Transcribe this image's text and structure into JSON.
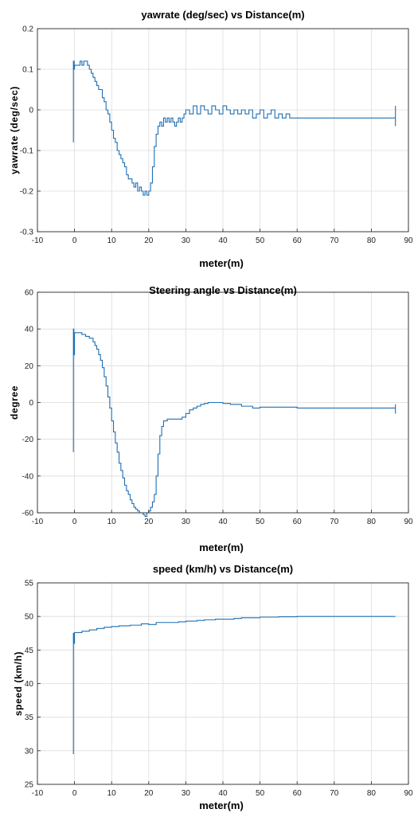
{
  "chart_data": [
    {
      "type": "line",
      "title": "yawrate (deg/sec) vs Distance(m)",
      "xlabel": "meter(m)",
      "ylabel": "yawrate (deg/sec)",
      "xlim": [
        -10,
        90
      ],
      "ylim": [
        -0.3,
        0.2
      ],
      "xticks": [
        -10,
        0,
        10,
        20,
        30,
        40,
        50,
        60,
        70,
        80,
        90
      ],
      "yticks": [
        -0.3,
        -0.2,
        -0.1,
        0,
        0.1,
        0.2
      ],
      "grid": true,
      "color": "#1f6fb4",
      "series": [
        {
          "x": [
            -0.3,
            -0.3,
            -0.1,
            0,
            0.5,
            1,
            1.5,
            2,
            2.5,
            3,
            3.5,
            4,
            4.5,
            5,
            5.5,
            6,
            6.5,
            7,
            7.5,
            8,
            8.5,
            9,
            9.5,
            10,
            10.5,
            11,
            11.5,
            12,
            12.5,
            13,
            13.5,
            14,
            14.5,
            15,
            15.5,
            16,
            16.5,
            17,
            17.5,
            18,
            18.5,
            19,
            19.5,
            20,
            20.5,
            21,
            21.5,
            22,
            22.5,
            23,
            23.5,
            24,
            24.5,
            25,
            25.5,
            26,
            26.5,
            27,
            27.5,
            28,
            28.5,
            29,
            29.5,
            30,
            31,
            32,
            33,
            34,
            35,
            36,
            37,
            38,
            39,
            40,
            41,
            42,
            43,
            44,
            45,
            46,
            47,
            48,
            49,
            50,
            51,
            52,
            53,
            54,
            55,
            56,
            57,
            58,
            60,
            70,
            80,
            86.5,
            86.5,
            86.5
          ],
          "y": [
            -0.08,
            0.12,
            0.1,
            0.11,
            0.11,
            0.11,
            0.12,
            0.11,
            0.12,
            0.12,
            0.11,
            0.1,
            0.09,
            0.08,
            0.07,
            0.06,
            0.05,
            0.05,
            0.03,
            0.02,
            0.0,
            -0.01,
            -0.03,
            -0.05,
            -0.07,
            -0.08,
            -0.1,
            -0.11,
            -0.12,
            -0.13,
            -0.14,
            -0.16,
            -0.17,
            -0.17,
            -0.18,
            -0.19,
            -0.18,
            -0.2,
            -0.19,
            -0.2,
            -0.21,
            -0.2,
            -0.21,
            -0.2,
            -0.18,
            -0.14,
            -0.09,
            -0.06,
            -0.04,
            -0.03,
            -0.04,
            -0.02,
            -0.03,
            -0.02,
            -0.03,
            -0.02,
            -0.03,
            -0.04,
            -0.03,
            -0.02,
            -0.03,
            -0.02,
            -0.01,
            0.0,
            -0.01,
            0.01,
            -0.01,
            0.01,
            0.0,
            -0.01,
            0.01,
            0.0,
            -0.01,
            0.01,
            0.0,
            -0.01,
            0.0,
            -0.01,
            0.0,
            -0.01,
            0.0,
            -0.02,
            -0.01,
            0.0,
            -0.02,
            -0.01,
            0.0,
            -0.02,
            -0.01,
            -0.02,
            -0.01,
            -0.02,
            -0.02,
            -0.02,
            -0.02,
            -0.02,
            0.01,
            -0.04
          ]
        }
      ]
    },
    {
      "type": "line",
      "title": "Steering angle vs Distance(m)",
      "xlabel": "meter(m)",
      "ylabel": "degree",
      "xlim": [
        -10,
        90
      ],
      "ylim": [
        -60,
        60
      ],
      "xticks": [
        -10,
        0,
        10,
        20,
        30,
        40,
        50,
        60,
        70,
        80,
        90
      ],
      "yticks": [
        -60,
        -40,
        -20,
        0,
        20,
        40,
        60
      ],
      "grid": true,
      "color": "#1f6fb4",
      "series": [
        {
          "x": [
            -0.3,
            -0.3,
            -0.2,
            0,
            1,
            2,
            3,
            4,
            5,
            5.5,
            6,
            6.5,
            7,
            7.5,
            8,
            8.5,
            9,
            9.5,
            10,
            10.5,
            11,
            11.5,
            12,
            12.5,
            13,
            13.5,
            14,
            14.5,
            15,
            15.5,
            16,
            16.5,
            17,
            17.5,
            18,
            18.5,
            19,
            19.5,
            20,
            20.5,
            21,
            21.5,
            22,
            22.5,
            23,
            23.5,
            24,
            25,
            26,
            27,
            28,
            29,
            30,
            31,
            32,
            33,
            34,
            35,
            36,
            37,
            38,
            40,
            42,
            45,
            48,
            50,
            55,
            60,
            70,
            80,
            86.5,
            86.5,
            86.5
          ],
          "y": [
            -27,
            40,
            26,
            38,
            38,
            37,
            36,
            35,
            33,
            31,
            29,
            26,
            23,
            19,
            14,
            9,
            3,
            -3,
            -10,
            -16,
            -22,
            -27,
            -33,
            -37,
            -41,
            -45,
            -48,
            -50,
            -53,
            -55,
            -57,
            -58,
            -59,
            -60,
            -60,
            -61,
            -62,
            -60,
            -59,
            -57,
            -54,
            -50,
            -40,
            -28,
            -18,
            -13,
            -10,
            -9,
            -9,
            -9,
            -9,
            -8,
            -6,
            -4,
            -3,
            -2,
            -1,
            -0.5,
            0,
            0,
            0,
            -0.5,
            -1,
            -2,
            -3,
            -2.5,
            -2.5,
            -3,
            -3,
            -3,
            -1,
            -6,
            -3
          ]
        }
      ]
    },
    {
      "type": "line",
      "title": "speed (km/h) vs Distance(m)",
      "xlabel": "meter(m)",
      "ylabel": "speed (km/h)",
      "xlim": [
        -10,
        90
      ],
      "ylim": [
        25,
        55
      ],
      "xticks": [
        -10,
        0,
        10,
        20,
        30,
        40,
        50,
        60,
        70,
        80,
        90
      ],
      "yticks": [
        25,
        30,
        35,
        40,
        45,
        50,
        55
      ],
      "grid": true,
      "color": "#1f6fb4",
      "series": [
        {
          "x": [
            -0.3,
            -0.3,
            -0.2,
            0,
            2,
            4,
            6,
            8,
            10,
            12,
            15,
            18,
            20,
            22,
            25,
            28,
            30,
            33,
            35,
            38,
            40,
            43,
            45,
            48,
            50,
            55,
            60,
            70,
            80,
            86.5
          ],
          "y": [
            29.5,
            47.5,
            46,
            47.6,
            47.8,
            48,
            48.2,
            48.4,
            48.5,
            48.6,
            48.7,
            48.9,
            48.8,
            49.1,
            49.1,
            49.2,
            49.3,
            49.4,
            49.5,
            49.6,
            49.6,
            49.7,
            49.8,
            49.8,
            49.9,
            49.95,
            50,
            50,
            50,
            50
          ]
        }
      ]
    }
  ]
}
